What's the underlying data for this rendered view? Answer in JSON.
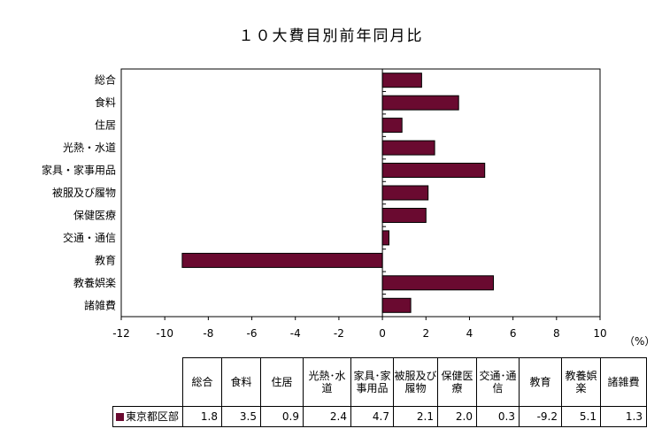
{
  "chart_data": {
    "type": "bar",
    "orientation": "horizontal",
    "title": "１０大費目別前年同月比",
    "unit_label": "（%）",
    "categories": [
      "総合",
      "食料",
      "住居",
      "光熱・水道",
      "家具・家事用品",
      "被服及び履物",
      "保健医療",
      "交通・通信",
      "教育",
      "教養娯楽",
      "諸雑費"
    ],
    "series": [
      {
        "name": "東京都区部",
        "values": [
          1.8,
          3.5,
          0.9,
          2.4,
          4.7,
          2.1,
          2.0,
          0.3,
          -9.2,
          5.1,
          1.3
        ]
      }
    ],
    "xlim": [
      -12,
      10
    ],
    "xticks": [
      "-12",
      "-10",
      "-8",
      "-6",
      "-4",
      "-2",
      "0",
      "2",
      "4",
      "6",
      "8",
      "10"
    ],
    "grid": false,
    "bar_color": "#6a0a30"
  },
  "table": {
    "headers": [
      "総合",
      "食料",
      "住居",
      "光熱･水道",
      "家具･家事用品",
      "被服及び履物",
      "保健医療",
      "交通･通信",
      "教育",
      "教養娯楽",
      "諸雑費"
    ],
    "row_label": "東京都区部",
    "values": [
      "1.8",
      "3.5",
      "0.9",
      "2.4",
      "4.7",
      "2.1",
      "2.0",
      "0.3",
      "-9.2",
      "5.1",
      "1.3"
    ]
  }
}
